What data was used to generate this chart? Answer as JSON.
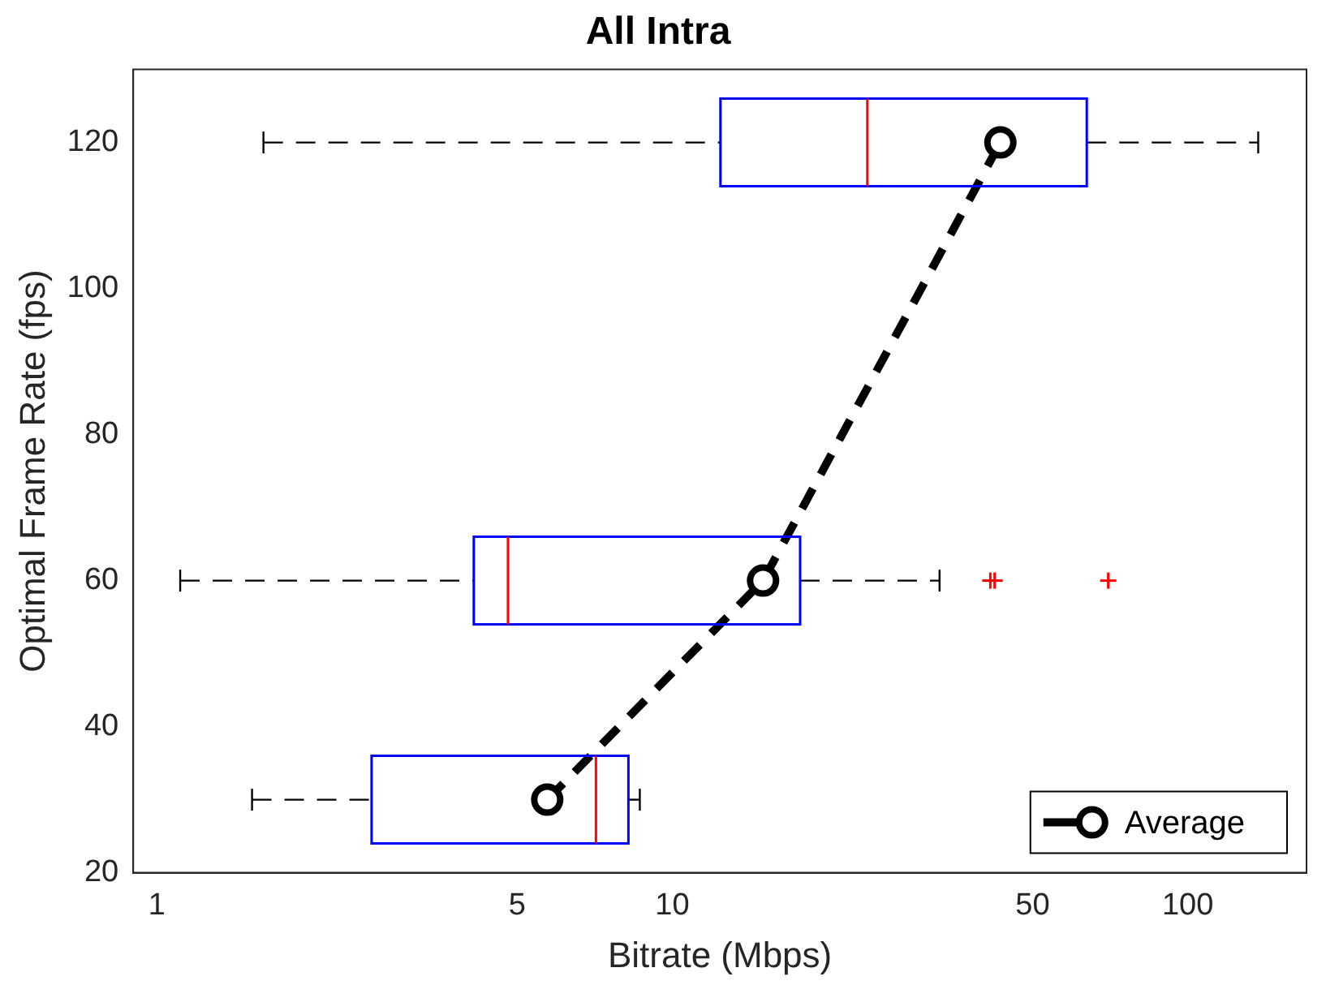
{
  "chart_data": {
    "type": "box",
    "title": "All Intra",
    "xlabel": "Bitrate (Mbps)",
    "ylabel": "Optimal Frame Rate (fps)",
    "orientation": "horizontal",
    "log": "x",
    "xlim": [
      0.9,
      170
    ],
    "xticks": [
      1,
      5,
      10,
      50,
      100
    ],
    "ylim": [
      20,
      130
    ],
    "yticks": [
      20,
      40,
      60,
      80,
      100,
      120
    ],
    "grid": false,
    "legend": "bottom right",
    "series": [
      {
        "type": "box",
        "color": "#0000ff",
        "x": [
          30,
          60,
          120
        ],
        "boxes": [
          {
            "low": 1.53,
            "q1": 2.61,
            "median": 7.11,
            "q3": 8.22,
            "high": 8.65
          },
          {
            "low": 1.11,
            "q1": 4.12,
            "median": 4.8,
            "q3": 17.7,
            "high": 33,
            "outliers": [
              41.4,
              42.2,
              70.1
            ]
          },
          {
            "low": 1.61,
            "q1": 12.4,
            "median": 23.9,
            "q3": 63.7,
            "high": 137
          }
        ]
      },
      {
        "type": "line",
        "name": "Average",
        "color": "#000000",
        "x": [
          30,
          60,
          120
        ],
        "values": [
          5.72,
          15,
          43.3
        ],
        "marker": "circle",
        "line_style": "dashed"
      }
    ]
  }
}
